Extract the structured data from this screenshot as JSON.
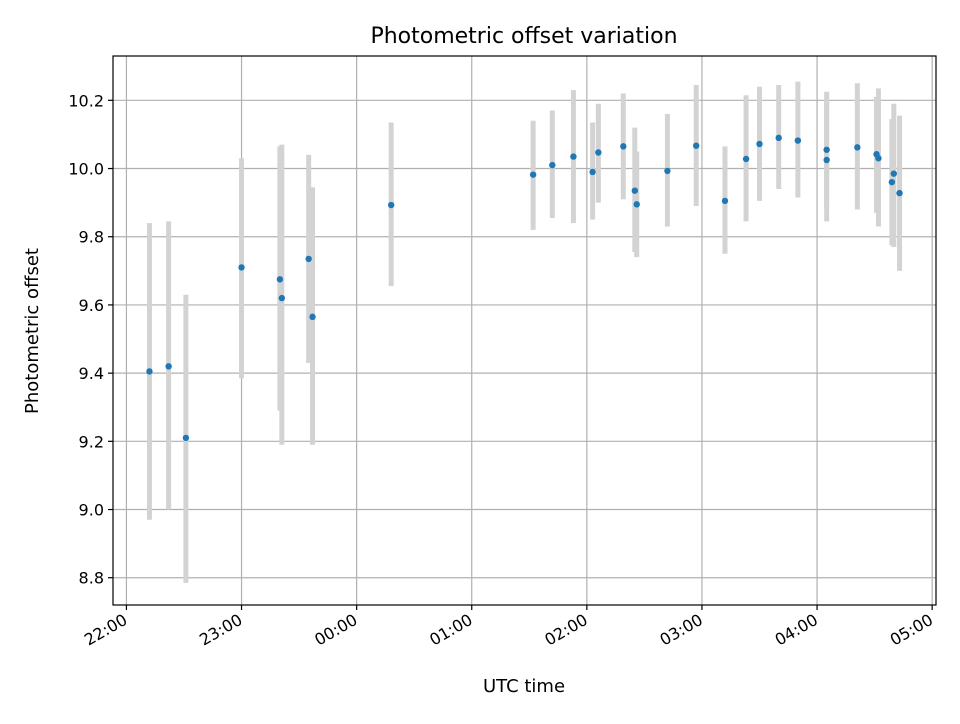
{
  "chart_data": {
    "type": "scatter",
    "title": "Photometric offset variation",
    "xlabel": "UTC time",
    "ylabel": "Photometric offset",
    "x_tick_labels": [
      "22:00",
      "23:00",
      "00:00",
      "01:00",
      "02:00",
      "03:00",
      "04:00",
      "05:00"
    ],
    "y_tick_labels": [
      "8.8",
      "9.0",
      "9.2",
      "9.4",
      "9.6",
      "9.8",
      "10.0",
      "10.2"
    ],
    "y_ticks": [
      8.8,
      9.0,
      9.2,
      9.4,
      9.6,
      9.8,
      10.0,
      10.2
    ],
    "xlim": [
      "21:53",
      "05:02"
    ],
    "ylim": [
      8.72,
      10.33
    ],
    "grid": true,
    "point_color": "#1f77b4",
    "errorbar_color": "#d3d3d3",
    "series": [
      {
        "points": [
          {
            "x": "22:12",
            "y": 9.405,
            "ylow": 8.97,
            "yhigh": 9.84
          },
          {
            "x": "22:22",
            "y": 9.42,
            "ylow": 9.0,
            "yhigh": 9.845
          },
          {
            "x": "22:31",
            "y": 9.21,
            "ylow": 8.785,
            "yhigh": 9.63
          },
          {
            "x": "23:00",
            "y": 9.71,
            "ylow": 9.385,
            "yhigh": 10.03
          },
          {
            "x": "23:20",
            "y": 9.675,
            "ylow": 9.29,
            "yhigh": 10.065
          },
          {
            "x": "23:21",
            "y": 9.62,
            "ylow": 9.19,
            "yhigh": 10.07
          },
          {
            "x": "23:35",
            "y": 9.735,
            "ylow": 9.43,
            "yhigh": 10.04
          },
          {
            "x": "23:37",
            "y": 9.565,
            "ylow": 9.19,
            "yhigh": 9.945
          },
          {
            "x": "00:18",
            "y": 9.893,
            "ylow": 9.655,
            "yhigh": 10.135
          },
          {
            "x": "01:32",
            "y": 9.982,
            "ylow": 9.82,
            "yhigh": 10.14
          },
          {
            "x": "01:42",
            "y": 10.01,
            "ylow": 9.855,
            "yhigh": 10.17
          },
          {
            "x": "01:53",
            "y": 10.035,
            "ylow": 9.84,
            "yhigh": 10.23
          },
          {
            "x": "02:03",
            "y": 9.99,
            "ylow": 9.85,
            "yhigh": 10.135
          },
          {
            "x": "02:06",
            "y": 10.047,
            "ylow": 9.9,
            "yhigh": 10.19
          },
          {
            "x": "02:19",
            "y": 10.065,
            "ylow": 9.91,
            "yhigh": 10.22
          },
          {
            "x": "02:25",
            "y": 9.935,
            "ylow": 9.755,
            "yhigh": 10.12
          },
          {
            "x": "02:26",
            "y": 9.895,
            "ylow": 9.74,
            "yhigh": 10.05
          },
          {
            "x": "02:42",
            "y": 9.993,
            "ylow": 9.83,
            "yhigh": 10.16
          },
          {
            "x": "02:57",
            "y": 10.067,
            "ylow": 9.89,
            "yhigh": 10.245
          },
          {
            "x": "03:12",
            "y": 9.905,
            "ylow": 9.75,
            "yhigh": 10.065
          },
          {
            "x": "03:23",
            "y": 10.028,
            "ylow": 9.845,
            "yhigh": 10.215
          },
          {
            "x": "03:30",
            "y": 10.072,
            "ylow": 9.905,
            "yhigh": 10.24
          },
          {
            "x": "03:40",
            "y": 10.09,
            "ylow": 9.94,
            "yhigh": 10.245
          },
          {
            "x": "03:50",
            "y": 10.082,
            "ylow": 9.915,
            "yhigh": 10.255
          },
          {
            "x": "04:05",
            "y": 10.055,
            "ylow": 9.89,
            "yhigh": 10.225
          },
          {
            "x": "04:05",
            "y": 10.025,
            "ylow": 9.845,
            "yhigh": 10.205
          },
          {
            "x": "04:21",
            "y": 10.062,
            "ylow": 9.88,
            "yhigh": 10.25
          },
          {
            "x": "04:31",
            "y": 10.042,
            "ylow": 9.87,
            "yhigh": 10.21
          },
          {
            "x": "04:32",
            "y": 10.03,
            "ylow": 9.83,
            "yhigh": 10.235
          },
          {
            "x": "04:39",
            "y": 9.96,
            "ylow": 9.775,
            "yhigh": 10.145
          },
          {
            "x": "04:40",
            "y": 9.985,
            "ylow": 9.77,
            "yhigh": 10.19
          },
          {
            "x": "04:43",
            "y": 9.928,
            "ylow": 9.7,
            "yhigh": 10.155
          }
        ]
      }
    ]
  }
}
